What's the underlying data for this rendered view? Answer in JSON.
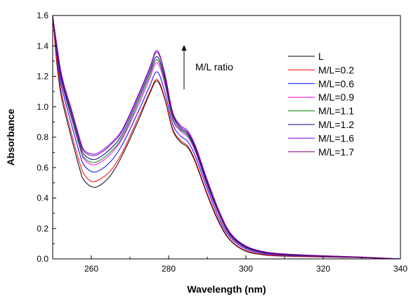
{
  "chart_data": {
    "type": "line",
    "title": "",
    "xlabel": "Wavelength (nm)",
    "ylabel": "Absorbance",
    "xlim": [
      250,
      340
    ],
    "ylim": [
      0.0,
      1.6
    ],
    "xticks": [
      260,
      280,
      300,
      320,
      340
    ],
    "yticks": [
      "0.0",
      "0.2",
      "0.4",
      "0.6",
      "0.8",
      "1.0",
      "1.2",
      "1.4",
      "1.6"
    ],
    "grid": false,
    "legend_position": "right",
    "annotation": {
      "text": "M/L ratio",
      "arrow": "up"
    },
    "x": [
      250,
      251,
      252,
      253,
      255,
      257,
      258,
      260,
      262,
      265,
      268,
      272,
      275,
      277,
      279,
      281,
      283,
      285,
      287,
      290,
      293,
      296,
      300,
      305,
      310,
      320,
      330,
      340
    ],
    "series": [
      {
        "name": "L",
        "color": "#000000",
        "values": [
          1.6,
          1.3,
          1.1,
          0.98,
          0.78,
          0.59,
          0.52,
          0.475,
          0.48,
          0.55,
          0.68,
          0.9,
          1.08,
          1.17,
          1.05,
          0.85,
          0.77,
          0.73,
          0.63,
          0.42,
          0.24,
          0.12,
          0.05,
          0.025,
          0.018,
          0.012,
          0.008,
          0.0
        ]
      },
      {
        "name": "M/L=0.2",
        "color": "#ff0000",
        "values": [
          1.6,
          1.32,
          1.13,
          1.01,
          0.81,
          0.63,
          0.56,
          0.51,
          0.52,
          0.58,
          0.7,
          0.92,
          1.09,
          1.18,
          1.06,
          0.86,
          0.78,
          0.74,
          0.64,
          0.43,
          0.25,
          0.125,
          0.055,
          0.028,
          0.02,
          0.013,
          0.008,
          0.0
        ]
      },
      {
        "name": "M/L=0.6",
        "color": "#0000ff",
        "values": [
          1.6,
          1.36,
          1.17,
          1.06,
          0.87,
          0.69,
          0.62,
          0.575,
          0.58,
          0.64,
          0.75,
          0.96,
          1.13,
          1.23,
          1.1,
          0.89,
          0.81,
          0.77,
          0.67,
          0.46,
          0.27,
          0.14,
          0.065,
          0.034,
          0.024,
          0.015,
          0.009,
          0.0
        ]
      },
      {
        "name": "M/L=0.9",
        "color": "#ff00ff",
        "values": [
          1.6,
          1.38,
          1.2,
          1.09,
          0.91,
          0.73,
          0.66,
          0.62,
          0.63,
          0.69,
          0.79,
          1.0,
          1.18,
          1.29,
          1.15,
          0.92,
          0.84,
          0.8,
          0.7,
          0.48,
          0.29,
          0.15,
          0.072,
          0.038,
          0.027,
          0.017,
          0.01,
          0.0
        ]
      },
      {
        "name": "M/L=1.1",
        "color": "#008000",
        "values": [
          1.6,
          1.39,
          1.21,
          1.1,
          0.92,
          0.74,
          0.67,
          0.635,
          0.645,
          0.705,
          0.8,
          1.02,
          1.2,
          1.31,
          1.17,
          0.93,
          0.85,
          0.81,
          0.71,
          0.49,
          0.3,
          0.155,
          0.075,
          0.04,
          0.028,
          0.018,
          0.01,
          0.0
        ]
      },
      {
        "name": "M/L=1.2",
        "color": "#000080",
        "values": [
          1.6,
          1.4,
          1.22,
          1.11,
          0.94,
          0.76,
          0.69,
          0.655,
          0.665,
          0.725,
          0.82,
          1.04,
          1.22,
          1.33,
          1.19,
          0.95,
          0.86,
          0.82,
          0.72,
          0.5,
          0.31,
          0.16,
          0.078,
          0.042,
          0.03,
          0.019,
          0.011,
          0.0
        ]
      },
      {
        "name": "M/L=1.6",
        "color": "#8000ff",
        "values": [
          1.6,
          1.42,
          1.25,
          1.14,
          0.97,
          0.79,
          0.72,
          0.69,
          0.7,
          0.76,
          0.85,
          1.07,
          1.25,
          1.37,
          1.22,
          0.97,
          0.88,
          0.84,
          0.74,
          0.52,
          0.32,
          0.17,
          0.085,
          0.046,
          0.033,
          0.021,
          0.012,
          0.0
        ]
      },
      {
        "name": "M/L=1.7",
        "color": "#800080",
        "values": [
          1.6,
          1.41,
          1.24,
          1.13,
          0.96,
          0.78,
          0.71,
          0.68,
          0.69,
          0.75,
          0.84,
          1.06,
          1.24,
          1.36,
          1.21,
          0.96,
          0.87,
          0.83,
          0.73,
          0.51,
          0.315,
          0.165,
          0.082,
          0.045,
          0.032,
          0.02,
          0.012,
          0.0
        ]
      }
    ]
  }
}
